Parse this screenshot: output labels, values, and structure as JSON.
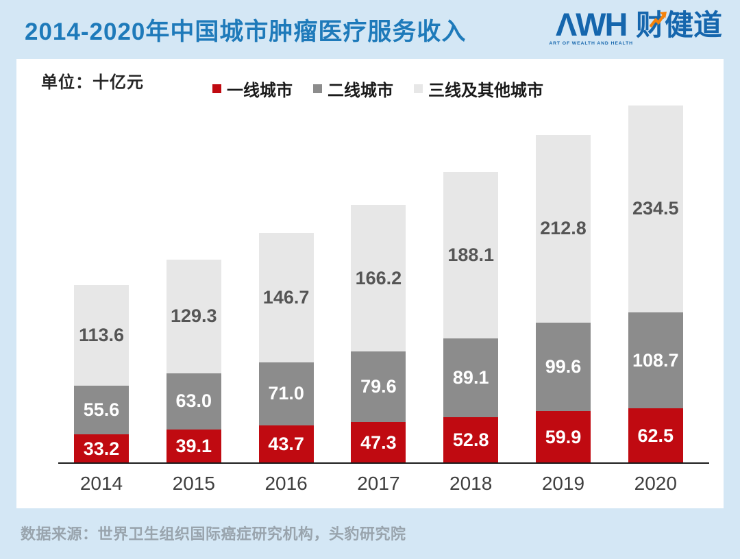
{
  "page": {
    "title": "2014-2020年中国城市肿瘤医疗服务收入",
    "unit_label": "单位：十亿元",
    "source": "数据来源：世界卫生组织国际癌症研究机构，头豹研究院",
    "background_color": "#d4e7f5",
    "title_color": "#1e7aba"
  },
  "logo": {
    "acronym": "ΛWH",
    "tagline": "ART OF WEALTH AND HEALTH",
    "brand": "财健道",
    "arrow_icon": "up-trend-arrow",
    "blue": "#1566ad",
    "orange": "#f5820b"
  },
  "chart_data": {
    "type": "bar",
    "stacked": true,
    "title": "2014-2020年中国城市肿瘤医疗服务收入",
    "unit": "十亿元",
    "categories": [
      "2014",
      "2015",
      "2016",
      "2017",
      "2018",
      "2019",
      "2020"
    ],
    "series": [
      {
        "name": "一线城市",
        "color": "#c00a11",
        "label_color": "#ffffff",
        "values": [
          33.2,
          39.1,
          43.7,
          47.3,
          52.8,
          59.9,
          62.5
        ]
      },
      {
        "name": "二线城市",
        "color": "#8c8c8c",
        "label_color": "#ffffff",
        "values": [
          55.6,
          63.0,
          71.0,
          79.6,
          89.1,
          99.6,
          108.7
        ]
      },
      {
        "name": "三线及其他城市",
        "color": "#e7e7e7",
        "label_color": "#555555",
        "values": [
          113.6,
          129.3,
          146.7,
          166.2,
          188.1,
          212.8,
          234.5
        ]
      }
    ],
    "legend_position": "top",
    "grid": false,
    "value_labels": "inside",
    "ylim": [
      0,
      420
    ]
  }
}
